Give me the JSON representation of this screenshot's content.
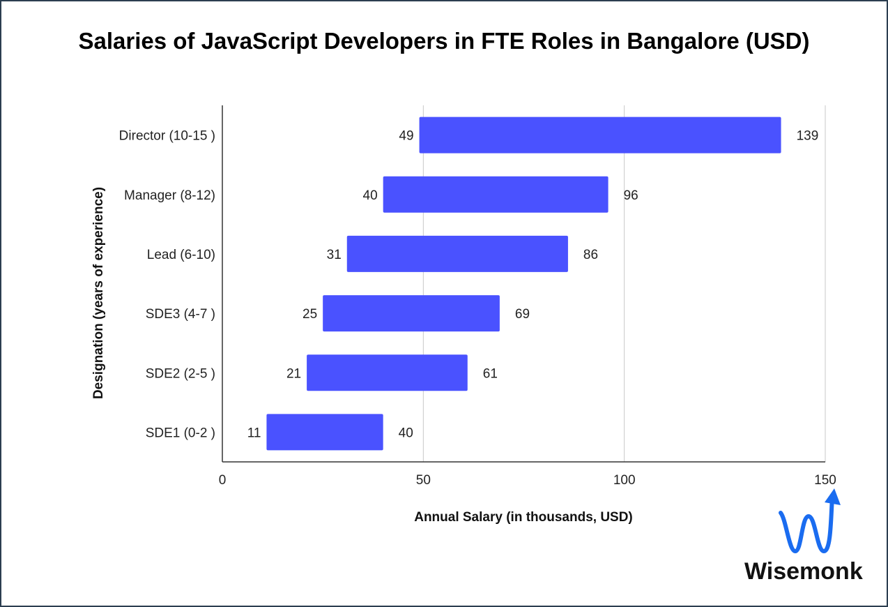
{
  "chart_data": {
    "type": "bar",
    "orientation": "horizontal",
    "subtype": "floating-range",
    "title": "Salaries of JavaScript Developers in FTE Roles in Bangalore (USD)",
    "xlabel": "Annual Salary (in thousands, USD)",
    "ylabel": "Designation (years of experience)",
    "xlim": [
      0,
      150
    ],
    "xticks": [
      0,
      50,
      100,
      150
    ],
    "grid": "vertical",
    "bar_color": "#4a52ff",
    "categories": [
      "Director (10-15 )",
      "Manager (8-12)",
      "Lead (6-10)",
      "SDE3 (4-7 )",
      "SDE2 (2-5 )",
      "SDE1 (0-2 )"
    ],
    "min_values": [
      49,
      40,
      31,
      25,
      21,
      11
    ],
    "max_values": [
      139,
      96,
      86,
      69,
      61,
      40
    ]
  },
  "branding": {
    "logo_text": "Wisemonk",
    "logo_color": "#1a6cf0",
    "logo_icon": "wave-arrow-icon"
  }
}
